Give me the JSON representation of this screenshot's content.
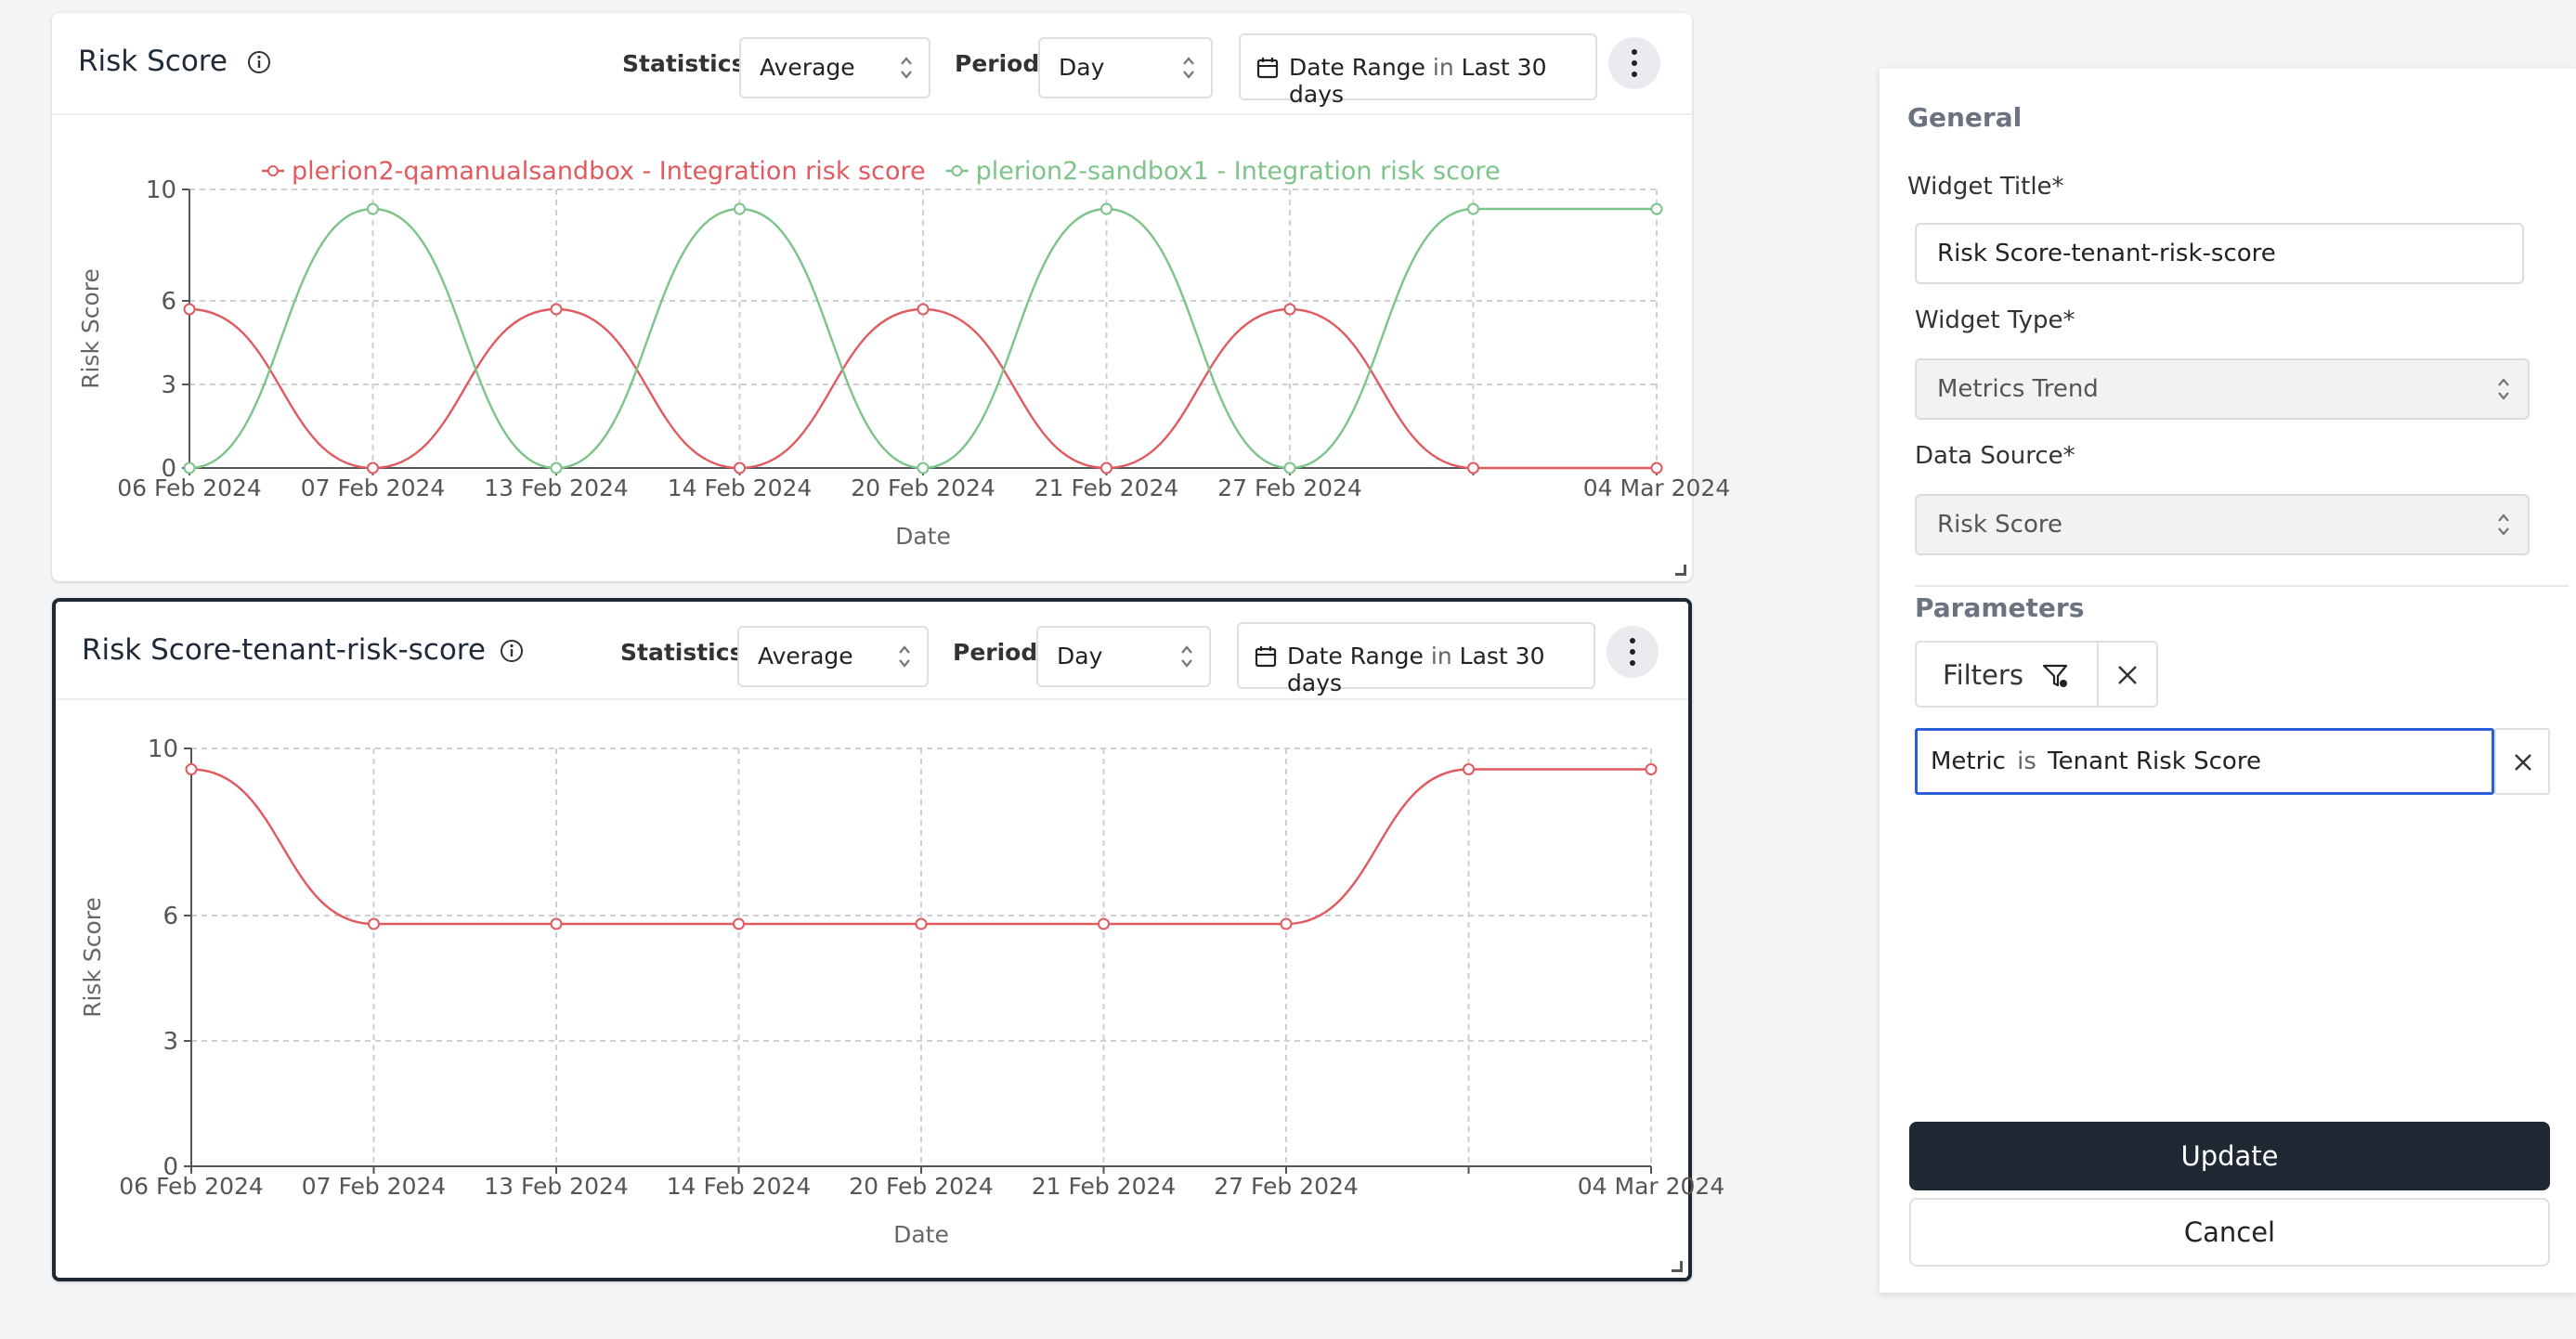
{
  "widgets": [
    {
      "title": "Risk Score",
      "statistics_label": "Statistics:",
      "statistics_value": "Average",
      "period_label": "Period:",
      "period_value": "Day",
      "date_range_label": "Date Range",
      "date_range_in": "in",
      "date_range_value": "Last 30 days"
    },
    {
      "title": "Risk Score-tenant-risk-score",
      "statistics_label": "Statistics:",
      "statistics_value": "Average",
      "period_label": "Period:",
      "period_value": "Day",
      "date_range_label": "Date Range",
      "date_range_in": "in",
      "date_range_value": "Last 30 days"
    }
  ],
  "chart_data": [
    {
      "type": "line",
      "x": [
        "06 Feb 2024",
        "07 Feb 2024",
        "13 Feb 2024",
        "14 Feb 2024",
        "20 Feb 2024",
        "21 Feb 2024",
        "27 Feb 2024",
        "",
        "04 Mar 2024"
      ],
      "tick_labels": [
        "06 Feb 2024",
        "07 Feb 2024",
        "13 Feb 2024",
        "14 Feb 2024",
        "20 Feb 2024",
        "21 Feb 2024",
        "27 Feb 2024",
        "04 Mar 2024"
      ],
      "series": [
        {
          "name": "plerion2-qamanualsandbox - Integration risk score",
          "color": "#e05a5f",
          "values": [
            5.7,
            0,
            5.7,
            0,
            5.7,
            0,
            5.7,
            0,
            0
          ]
        },
        {
          "name": "plerion2-sandbox1 - Integration risk score",
          "color": "#7cc48a",
          "values": [
            0,
            9.3,
            0,
            9.3,
            0,
            9.3,
            0,
            9.3,
            9.3
          ]
        }
      ],
      "xlabel": "Date",
      "ylabel": "Risk Score",
      "ylim": [
        0,
        10
      ],
      "yticks": [
        0,
        3,
        6,
        10
      ],
      "legend": "top-center",
      "grid": true
    },
    {
      "type": "line",
      "x": [
        "06 Feb 2024",
        "07 Feb 2024",
        "13 Feb 2024",
        "14 Feb 2024",
        "20 Feb 2024",
        "21 Feb 2024",
        "27 Feb 2024",
        "",
        "04 Mar 2024"
      ],
      "tick_labels": [
        "06 Feb 2024",
        "07 Feb 2024",
        "13 Feb 2024",
        "14 Feb 2024",
        "20 Feb 2024",
        "21 Feb 2024",
        "27 Feb 2024",
        "04 Mar 2024"
      ],
      "series": [
        {
          "color": "#e05a5f",
          "values": [
            9.5,
            5.8,
            5.8,
            5.8,
            5.8,
            5.8,
            5.8,
            9.5,
            9.5
          ]
        }
      ],
      "xlabel": "Date",
      "ylabel": "Risk Score",
      "ylim": [
        0,
        10
      ],
      "yticks": [
        0,
        3,
        6,
        10
      ],
      "grid": true
    }
  ],
  "panel": {
    "general_heading": "General",
    "widget_title_label": "Widget Title*",
    "widget_title_value": "Risk Score-tenant-risk-score",
    "widget_type_label": "Widget Type*",
    "widget_type_value": "Metrics Trend",
    "data_source_label": "Data Source*",
    "data_source_value": "Risk Score",
    "parameters_heading": "Parameters",
    "filters_label": "Filters",
    "metric_key": "Metric",
    "metric_is": "is",
    "metric_value": "Tenant Risk Score",
    "update_label": "Update",
    "cancel_label": "Cancel"
  }
}
